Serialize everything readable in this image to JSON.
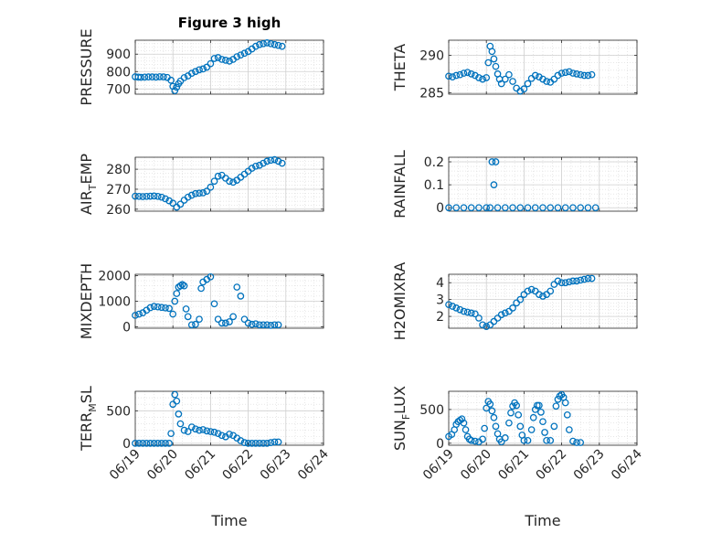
{
  "figure": {
    "title": "Figure 3 high",
    "x_axis_label": "Time",
    "date_ticks": [
      "06/19",
      "06/20",
      "06/21",
      "06/22",
      "06/23",
      "06/24"
    ],
    "marker_color": "#0072BD",
    "grid_color": "#d9d9d9",
    "axes_color": "#262626"
  },
  "chart_data": [
    {
      "type": "scatter",
      "ylabel": "PRESSURE",
      "ylabel_main": "PRESSURE",
      "ylabel_sub": "",
      "ylabel_tail": "",
      "title": "Figure 3 high",
      "ylim": [
        670,
        980
      ],
      "yticks": [
        700,
        800,
        900
      ],
      "xlim": [
        "06/19",
        "06/24"
      ],
      "x_days": [
        0.0,
        0.08,
        0.15,
        0.25,
        0.35,
        0.45,
        0.55,
        0.65,
        0.75,
        0.85,
        0.95,
        1.0,
        1.05,
        1.1,
        1.15,
        1.2,
        1.3,
        1.4,
        1.5,
        1.6,
        1.7,
        1.8,
        1.9,
        2.0,
        2.1,
        2.2,
        2.3,
        2.4,
        2.5,
        2.6,
        2.7,
        2.8,
        2.9,
        3.0,
        3.1,
        3.2,
        3.3,
        3.4,
        3.5,
        3.6,
        3.7,
        3.8,
        3.9
      ],
      "y": [
        770,
        768,
        767,
        768,
        769,
        769,
        768,
        770,
        769,
        766,
        750,
        715,
        690,
        710,
        730,
        745,
        765,
        775,
        790,
        800,
        810,
        815,
        825,
        845,
        875,
        880,
        870,
        865,
        860,
        870,
        885,
        895,
        905,
        915,
        930,
        945,
        955,
        960,
        965,
        960,
        955,
        950,
        945
      ]
    },
    {
      "type": "scatter",
      "ylabel": "THETA",
      "ylabel_main": "THETA",
      "ylabel_sub": "",
      "ylabel_tail": "",
      "ylim": [
        284.8,
        292
      ],
      "yticks": [
        285,
        290
      ],
      "xlim": [
        "06/19",
        "06/24"
      ],
      "x_days": [
        0.0,
        0.1,
        0.2,
        0.3,
        0.4,
        0.5,
        0.6,
        0.7,
        0.8,
        0.9,
        1.0,
        1.05,
        1.1,
        1.15,
        1.2,
        1.25,
        1.3,
        1.35,
        1.4,
        1.5,
        1.6,
        1.7,
        1.8,
        1.9,
        2.0,
        2.1,
        2.2,
        2.3,
        2.4,
        2.5,
        2.6,
        2.7,
        2.8,
        2.9,
        3.0,
        3.1,
        3.2,
        3.3,
        3.4,
        3.5,
        3.6,
        3.7,
        3.8
      ],
      "y": [
        287.2,
        287.1,
        287.3,
        287.4,
        287.6,
        287.7,
        287.5,
        287.3,
        287.0,
        286.8,
        287.0,
        289.0,
        291.2,
        290.5,
        289.5,
        288.5,
        287.5,
        286.8,
        286.2,
        286.8,
        287.4,
        286.5,
        285.6,
        285.2,
        285.5,
        286.2,
        286.9,
        287.3,
        287.1,
        286.8,
        286.5,
        286.4,
        286.8,
        287.3,
        287.6,
        287.7,
        287.8,
        287.6,
        287.5,
        287.4,
        287.3,
        287.3,
        287.4
      ]
    },
    {
      "type": "scatter",
      "ylabel": "AIR_TEMP",
      "ylabel_main": "AIR",
      "ylabel_sub": "T",
      "ylabel_tail": "EMP",
      "ylim": [
        259,
        286
      ],
      "yticks": [
        260,
        270,
        280
      ],
      "xlim": [
        "06/19",
        "06/24"
      ],
      "x_days": [
        0.0,
        0.1,
        0.2,
        0.3,
        0.4,
        0.5,
        0.6,
        0.7,
        0.8,
        0.9,
        1.0,
        1.1,
        1.2,
        1.3,
        1.4,
        1.5,
        1.6,
        1.7,
        1.8,
        1.9,
        2.0,
        2.1,
        2.2,
        2.3,
        2.4,
        2.5,
        2.6,
        2.7,
        2.8,
        2.9,
        3.0,
        3.1,
        3.2,
        3.3,
        3.4,
        3.5,
        3.6,
        3.7,
        3.8,
        3.9
      ],
      "y": [
        266.5,
        266.4,
        266.3,
        266.4,
        266.5,
        266.6,
        266.4,
        266.0,
        265.2,
        264.2,
        263.0,
        261.0,
        262.5,
        264.5,
        266.0,
        267.0,
        267.8,
        268.0,
        268.2,
        269.0,
        271.0,
        274.0,
        276.5,
        277.0,
        275.5,
        274.0,
        273.5,
        274.5,
        276.0,
        277.5,
        279.0,
        280.5,
        281.5,
        282.0,
        283.0,
        284.0,
        284.5,
        284.8,
        284.0,
        283.0
      ]
    },
    {
      "type": "scatter",
      "ylabel": "RAINFALL",
      "ylabel_main": "RAINFALL",
      "ylabel_sub": "",
      "ylabel_tail": "",
      "ylim": [
        -0.015,
        0.22
      ],
      "yticks": [
        0,
        0.1,
        0.2
      ],
      "xlim": [
        "06/19",
        "06/24"
      ],
      "x_days": [
        0.0,
        0.2,
        0.4,
        0.6,
        0.8,
        1.0,
        1.1,
        1.15,
        1.2,
        1.25,
        1.3,
        1.5,
        1.7,
        1.9,
        2.1,
        2.3,
        2.5,
        2.7,
        2.9,
        3.1,
        3.3,
        3.5,
        3.7,
        3.9
      ],
      "y": [
        0,
        0,
        0,
        0,
        0,
        0,
        0,
        0.2,
        0.1,
        0.2,
        0,
        0,
        0,
        0,
        0,
        0,
        0,
        0,
        0,
        0,
        0,
        0,
        0,
        0
      ]
    },
    {
      "type": "scatter",
      "ylabel": "MIXDEPTH",
      "ylabel_main": "MIXDEPTH",
      "ylabel_sub": "",
      "ylabel_tail": "",
      "ylim": [
        -50,
        2050
      ],
      "yticks": [
        0,
        1000,
        2000
      ],
      "xlim": [
        "06/19",
        "06/24"
      ],
      "x_days": [
        0.0,
        0.1,
        0.2,
        0.3,
        0.4,
        0.5,
        0.6,
        0.7,
        0.8,
        0.9,
        1.0,
        1.05,
        1.1,
        1.15,
        1.2,
        1.25,
        1.3,
        1.35,
        1.4,
        1.5,
        1.6,
        1.7,
        1.75,
        1.8,
        1.9,
        2.0,
        2.1,
        2.2,
        2.3,
        2.4,
        2.5,
        2.6,
        2.7,
        2.8,
        2.9,
        3.0,
        3.1,
        3.2,
        3.3,
        3.4,
        3.5,
        3.6,
        3.7,
        3.8
      ],
      "y": [
        450,
        500,
        550,
        650,
        750,
        800,
        780,
        760,
        740,
        720,
        500,
        1000,
        1300,
        1550,
        1600,
        1650,
        1600,
        700,
        400,
        80,
        100,
        300,
        1500,
        1750,
        1850,
        1950,
        900,
        300,
        150,
        150,
        200,
        400,
        1550,
        1200,
        300,
        150,
        100,
        120,
        80,
        80,
        80,
        60,
        80,
        80
      ]
    },
    {
      "type": "scatter",
      "ylabel": "H2OMIXRA",
      "ylabel_main": "H2OMIXRA",
      "ylabel_sub": "",
      "ylabel_tail": "",
      "ylim": [
        1.3,
        4.5
      ],
      "yticks": [
        2,
        3,
        4
      ],
      "xlim": [
        "06/19",
        "06/24"
      ],
      "x_days": [
        0.0,
        0.1,
        0.2,
        0.3,
        0.4,
        0.5,
        0.6,
        0.7,
        0.8,
        0.9,
        1.0,
        1.1,
        1.2,
        1.3,
        1.4,
        1.5,
        1.6,
        1.7,
        1.8,
        1.9,
        2.0,
        2.1,
        2.2,
        2.3,
        2.4,
        2.5,
        2.6,
        2.7,
        2.8,
        2.9,
        3.0,
        3.1,
        3.2,
        3.3,
        3.4,
        3.5,
        3.6,
        3.7,
        3.8
      ],
      "y": [
        2.7,
        2.6,
        2.5,
        2.4,
        2.3,
        2.25,
        2.2,
        2.15,
        1.9,
        1.5,
        1.4,
        1.5,
        1.7,
        1.9,
        2.1,
        2.2,
        2.3,
        2.5,
        2.8,
        3.0,
        3.3,
        3.5,
        3.6,
        3.5,
        3.3,
        3.2,
        3.3,
        3.5,
        3.9,
        4.1,
        4.0,
        4.0,
        4.05,
        4.1,
        4.1,
        4.15,
        4.2,
        4.25,
        4.25
      ]
    },
    {
      "type": "scatter",
      "ylabel": "TERR_MSL",
      "ylabel_main": "TERR",
      "ylabel_sub": "M",
      "ylabel_tail": "SL",
      "ylim": [
        -30,
        800
      ],
      "yticks": [
        0,
        500
      ],
      "xlim": [
        "06/19",
        "06/24"
      ],
      "x_days": [
        0.0,
        0.1,
        0.2,
        0.3,
        0.4,
        0.5,
        0.6,
        0.7,
        0.8,
        0.9,
        0.95,
        1.0,
        1.05,
        1.1,
        1.15,
        1.2,
        1.3,
        1.4,
        1.5,
        1.6,
        1.7,
        1.8,
        1.9,
        2.0,
        2.1,
        2.2,
        2.3,
        2.4,
        2.5,
        2.6,
        2.7,
        2.8,
        2.9,
        3.0,
        3.1,
        3.2,
        3.3,
        3.4,
        3.5,
        3.6,
        3.7,
        3.8
      ],
      "y": [
        0,
        0,
        0,
        0,
        0,
        0,
        0,
        0,
        0,
        0,
        150,
        600,
        750,
        650,
        450,
        300,
        200,
        180,
        250,
        220,
        200,
        210,
        190,
        180,
        170,
        150,
        120,
        100,
        140,
        120,
        80,
        40,
        10,
        0,
        0,
        0,
        0,
        0,
        0,
        10,
        20,
        20
      ]
    },
    {
      "type": "scatter",
      "ylabel": "SUN_FLUX",
      "ylabel_main": "SUN",
      "ylabel_sub": "F",
      "ylabel_tail": "LUX",
      "ylim": [
        -30,
        770
      ],
      "yticks": [
        0,
        500
      ],
      "xlim": [
        "06/19",
        "06/24"
      ],
      "x_days": [
        0.0,
        0.08,
        0.15,
        0.2,
        0.25,
        0.3,
        0.35,
        0.4,
        0.45,
        0.5,
        0.55,
        0.6,
        0.7,
        0.8,
        0.9,
        0.95,
        1.0,
        1.05,
        1.1,
        1.15,
        1.2,
        1.25,
        1.3,
        1.35,
        1.4,
        1.5,
        1.6,
        1.65,
        1.7,
        1.75,
        1.8,
        1.85,
        1.9,
        1.95,
        2.0,
        2.1,
        2.2,
        2.25,
        2.3,
        2.35,
        2.4,
        2.45,
        2.5,
        2.55,
        2.6,
        2.7,
        2.8,
        2.85,
        2.9,
        2.95,
        3.0,
        3.05,
        3.1,
        3.15,
        3.2,
        3.3,
        3.4,
        3.5
      ],
      "y": [
        100,
        130,
        200,
        280,
        320,
        340,
        360,
        300,
        200,
        100,
        60,
        40,
        30,
        20,
        60,
        220,
        520,
        620,
        580,
        480,
        380,
        250,
        140,
        60,
        20,
        80,
        300,
        450,
        550,
        600,
        560,
        420,
        250,
        120,
        40,
        40,
        200,
        380,
        500,
        560,
        560,
        460,
        320,
        160,
        40,
        40,
        250,
        550,
        650,
        700,
        720,
        680,
        600,
        420,
        200,
        30,
        10,
        10
      ]
    }
  ]
}
